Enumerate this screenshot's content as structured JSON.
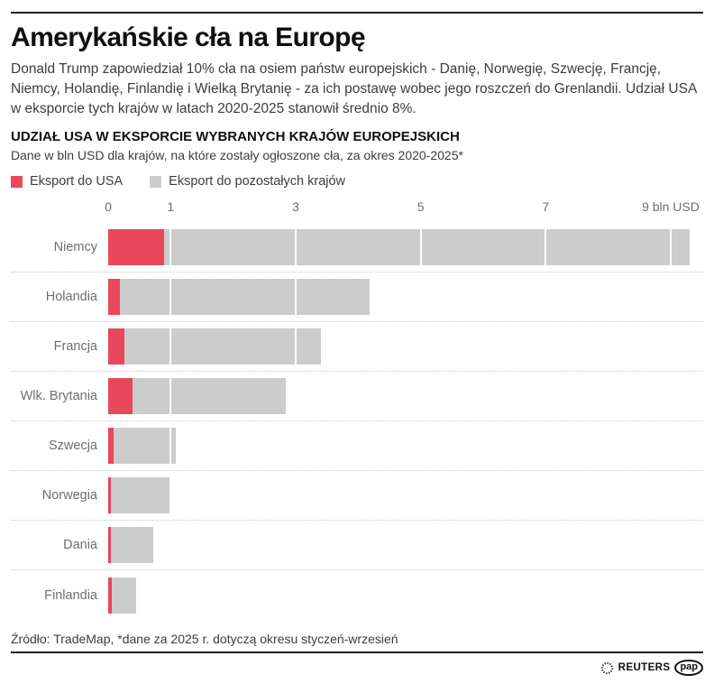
{
  "header": {
    "title": "Amerykańskie cła na Europę",
    "intro": "Donald Trump zapowiedział 10% cła na osiem państw europejskich - Danię, Norwegię, Szwecję, Francję, Niemcy, Holandię, Finlandię i Wielką Brytanię - za ich postawę wobec jego roszczeń do Grenlandii. Udział USA w eksporcie tych krajów w latach 2020-2025 stanowił średnio 8%."
  },
  "chart": {
    "heading": "UDZIAŁ USA W EKSPORCIE WYBRANYCH KRAJÓW EUROPEJSKICH",
    "subheading": "Dane w bln USD dla krajów, na które zostały ogłoszone cła, za okres 2020-2025*",
    "legend": [
      {
        "label": "Eksport do USA",
        "color": "#e8475c"
      },
      {
        "label": "Eksport do pozostałych krajów",
        "color": "#cccccc"
      }
    ]
  },
  "chart_data": {
    "type": "bar",
    "orientation": "horizontal",
    "stacked": true,
    "title": "UDZIAŁ USA W EKSPORCIE WYBRANYCH KRAJÓW EUROPEJSKICH",
    "xlabel": "bln USD",
    "xlim": [
      0,
      9.5
    ],
    "x_ticks": [
      {
        "value": 0,
        "label": "0"
      },
      {
        "value": 1,
        "label": "1"
      },
      {
        "value": 3,
        "label": "3"
      },
      {
        "value": 5,
        "label": "5"
      },
      {
        "value": 7,
        "label": "7"
      },
      {
        "value": 9,
        "label": "9 bln USD"
      }
    ],
    "gridlines": [
      1,
      3,
      5,
      7,
      9
    ],
    "categories": [
      "Niemcy",
      "Holandia",
      "Francja",
      "Wlk. Brytania",
      "Szwecja",
      "Norwegia",
      "Dania",
      "Finlandia"
    ],
    "series": [
      {
        "name": "Eksport do USA",
        "color": "#e8475c",
        "values": [
          0.9,
          0.19,
          0.26,
          0.39,
          0.09,
          0.04,
          0.04,
          0.06
        ]
      },
      {
        "name": "Eksport do pozostałych krajów",
        "color": "#cccccc",
        "values": [
          8.4,
          3.99,
          3.14,
          2.45,
          0.99,
          0.94,
          0.68,
          0.39
        ]
      }
    ]
  },
  "footer": {
    "source": "Źródło: TradeMap, *dane za 2025 r. dotyczą okresu styczeń-wrzesień",
    "brands": {
      "reuters": "REUTERS",
      "pap": "pap"
    }
  }
}
